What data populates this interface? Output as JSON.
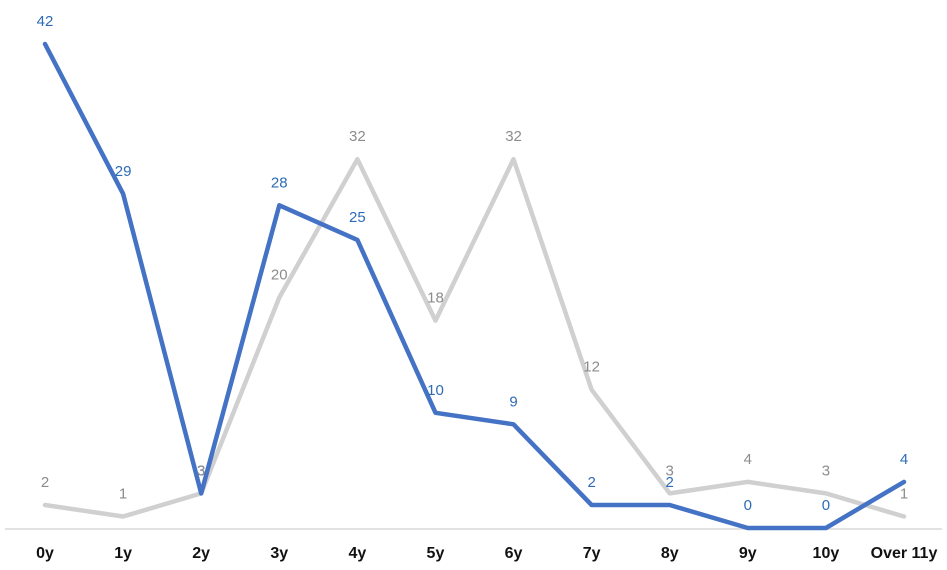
{
  "chart_data": {
    "type": "line",
    "title": "",
    "xlabel": "",
    "ylabel": "",
    "categories": [
      "0y",
      "1y",
      "2y",
      "3y",
      "4y",
      "5y",
      "6y",
      "7y",
      "8y",
      "9y",
      "10y",
      "Over 11y"
    ],
    "series": [
      {
        "color": "#4472C4",
        "label_color": "#2E6BB5",
        "values": [
          42,
          29,
          3,
          28,
          25,
          10,
          9,
          2,
          2,
          0,
          0,
          4
        ]
      },
      {
        "color": "#D0D0D0",
        "label_color": "#8C8C8C",
        "values": [
          2,
          1,
          3,
          20,
          32,
          18,
          32,
          12,
          3,
          4,
          3,
          1
        ]
      }
    ],
    "ylim": [
      0,
      42
    ],
    "grid": false,
    "legend": "none",
    "axis_color": "#D9D9D9"
  }
}
